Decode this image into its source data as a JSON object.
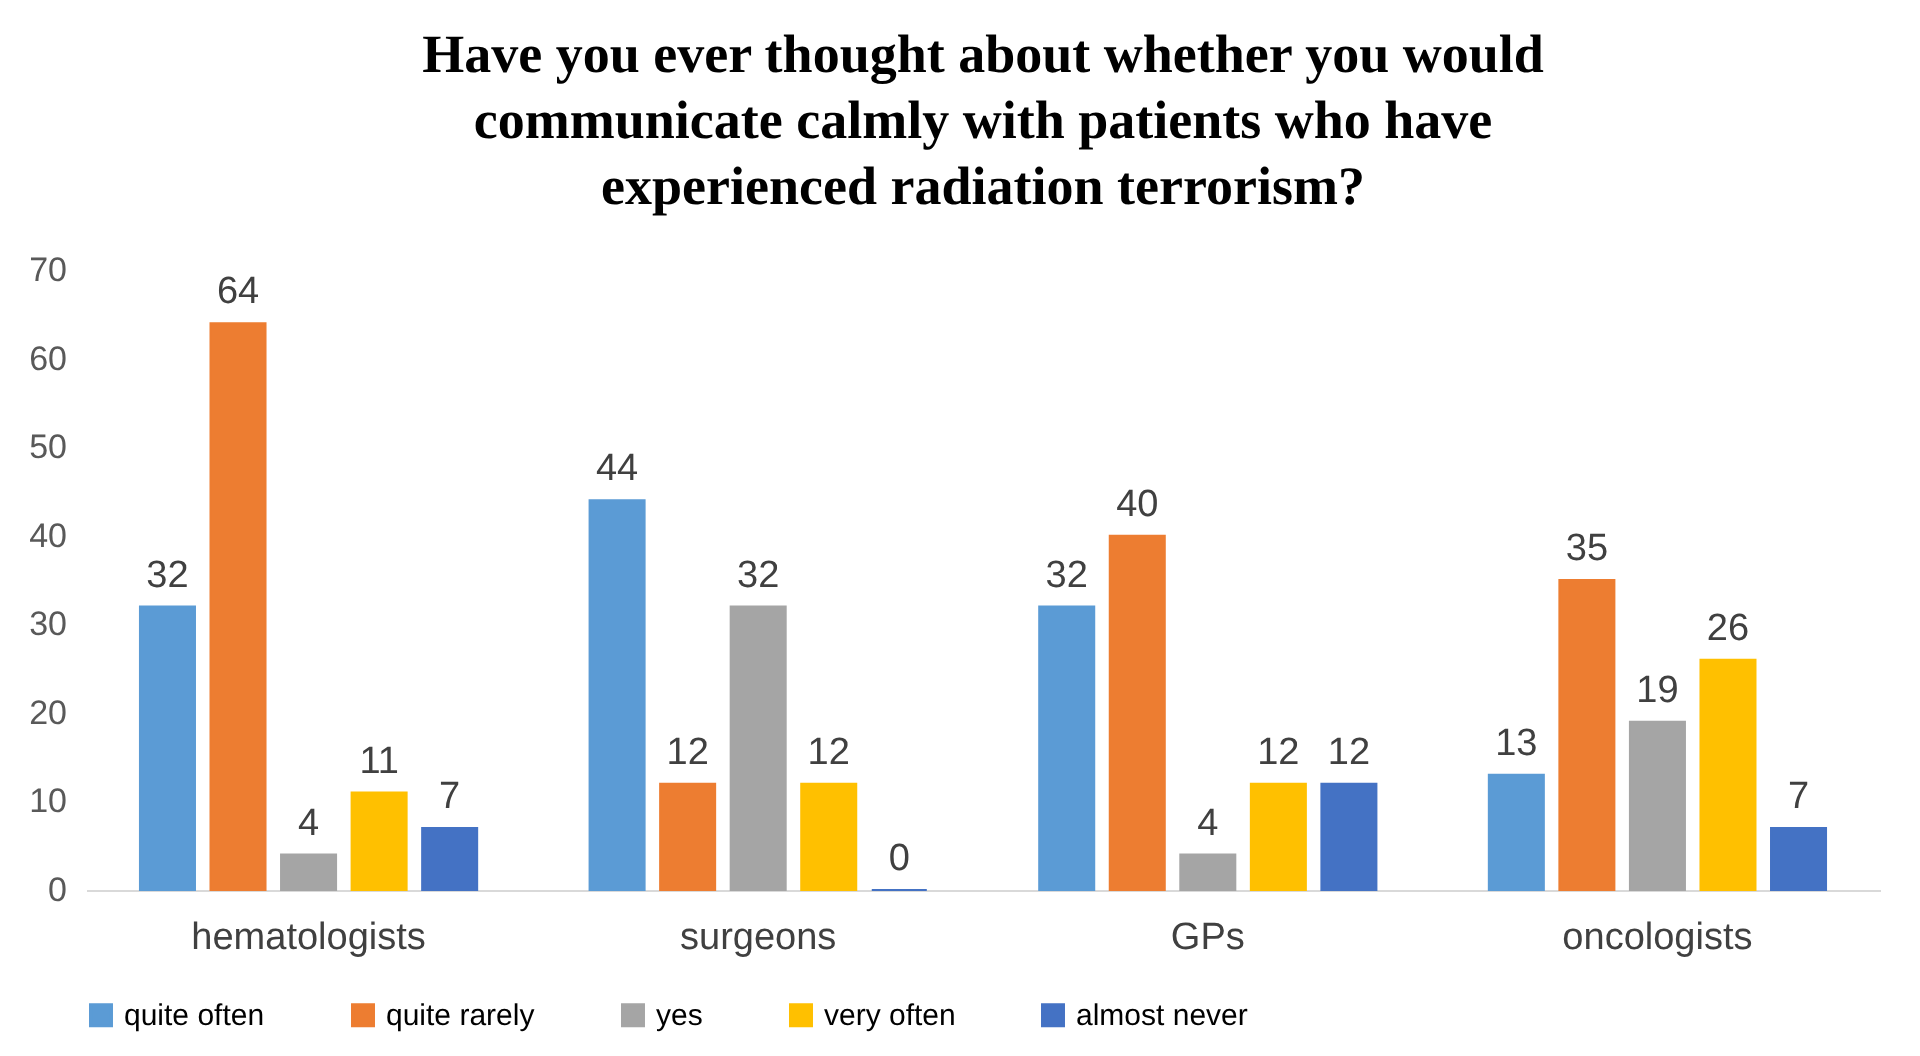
{
  "chart_data": {
    "type": "bar",
    "title": "Have you ever thought about whether you would communicate calmly with patients who have experienced radiation terrorism?",
    "categories": [
      "hematologists",
      "surgeons",
      "GPs",
      "oncologists"
    ],
    "series": [
      {
        "name": "quite often",
        "color": "#5b9bd5",
        "values": [
          32,
          44,
          32,
          13
        ]
      },
      {
        "name": "quite rarely",
        "color": "#ed7d31",
        "values": [
          64,
          12,
          40,
          35
        ]
      },
      {
        "name": "yes",
        "color": "#a5a5a5",
        "values": [
          4,
          32,
          4,
          19
        ]
      },
      {
        "name": "very often",
        "color": "#ffc000",
        "values": [
          11,
          12,
          12,
          26
        ]
      },
      {
        "name": "almost never",
        "color": "#4472c4",
        "values": [
          7,
          0,
          12,
          7
        ]
      }
    ],
    "ylim": [
      0,
      70
    ],
    "yticks": [
      0,
      10,
      20,
      30,
      40,
      50,
      60,
      70
    ],
    "grid": false,
    "legend": "bottom",
    "data_labels": true
  }
}
